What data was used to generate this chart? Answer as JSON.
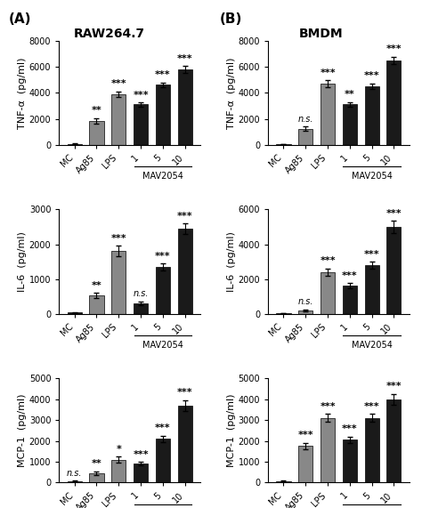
{
  "panel_A_title": "RAW264.7",
  "panel_B_title": "BMDM",
  "label_A": "(A)",
  "label_B": "(B)",
  "categories": [
    "MC",
    "Ag85",
    "LPS",
    "1",
    "5",
    "10"
  ],
  "mav2054_label": "MAV2054",
  "bar_colors": [
    "#1a1a1a",
    "#888888",
    "#888888",
    "#1a1a1a",
    "#1a1a1a",
    "#1a1a1a"
  ],
  "subplots": {
    "A_TNF": {
      "values": [
        80,
        1850,
        3900,
        3100,
        4600,
        5800
      ],
      "errors": [
        40,
        200,
        200,
        150,
        200,
        250
      ],
      "ylim": [
        0,
        8000
      ],
      "yticks": [
        0,
        2000,
        4000,
        6000,
        8000
      ],
      "ylabel": "TNF-α  (pg/ml)",
      "significance": [
        "",
        "**",
        "***",
        "***",
        "***",
        "***"
      ]
    },
    "A_IL6": {
      "values": [
        30,
        520,
        1800,
        300,
        1350,
        2450
      ],
      "errors": [
        15,
        80,
        150,
        60,
        100,
        150
      ],
      "ylim": [
        0,
        3000
      ],
      "yticks": [
        0,
        1000,
        2000,
        3000
      ],
      "ylabel": "IL-6  (pg/ml)",
      "significance": [
        "",
        "**",
        "***",
        "n.s.",
        "***",
        "***"
      ]
    },
    "A_MCP1": {
      "values": [
        60,
        450,
        1100,
        900,
        2100,
        3700
      ],
      "errors": [
        30,
        100,
        150,
        80,
        150,
        250
      ],
      "ylim": [
        0,
        5000
      ],
      "yticks": [
        0,
        1000,
        2000,
        3000,
        4000,
        5000
      ],
      "ylabel": "MCP-1  (pg/ml)",
      "significance": [
        "n.s.",
        "**",
        "*",
        "***",
        "***",
        "***"
      ]
    },
    "B_TNF": {
      "values": [
        60,
        1250,
        4700,
        3100,
        4500,
        6500
      ],
      "errors": [
        30,
        150,
        250,
        200,
        200,
        280
      ],
      "ylim": [
        0,
        8000
      ],
      "yticks": [
        0,
        2000,
        4000,
        6000,
        8000
      ],
      "ylabel": "TNF-α  (pg/ml)",
      "significance": [
        "",
        "n.s.",
        "***",
        "**",
        "***",
        "***"
      ]
    },
    "B_IL6": {
      "values": [
        30,
        200,
        2400,
        1600,
        2800,
        5000
      ],
      "errors": [
        15,
        50,
        200,
        150,
        200,
        350
      ],
      "ylim": [
        0,
        6000
      ],
      "yticks": [
        0,
        2000,
        4000,
        6000
      ],
      "ylabel": "IL-6  (pg/ml)",
      "significance": [
        "",
        "n.s.",
        "***",
        "***",
        "***",
        "***"
      ]
    },
    "B_MCP1": {
      "values": [
        80,
        1750,
        3100,
        2050,
        3100,
        4000
      ],
      "errors": [
        40,
        150,
        200,
        150,
        200,
        250
      ],
      "ylim": [
        0,
        5000
      ],
      "yticks": [
        0,
        1000,
        2000,
        3000,
        4000,
        5000
      ],
      "ylabel": "MCP-1  (pg/ml)",
      "significance": [
        "",
        "***",
        "***",
        "***",
        "***",
        "***"
      ]
    }
  },
  "background_color": "#ffffff",
  "text_color": "#000000",
  "sig_ns_fontsize": 7,
  "sig_star_fontsize": 8,
  "ylabel_fontsize": 8,
  "tick_fontsize": 7,
  "title_fontsize": 10
}
